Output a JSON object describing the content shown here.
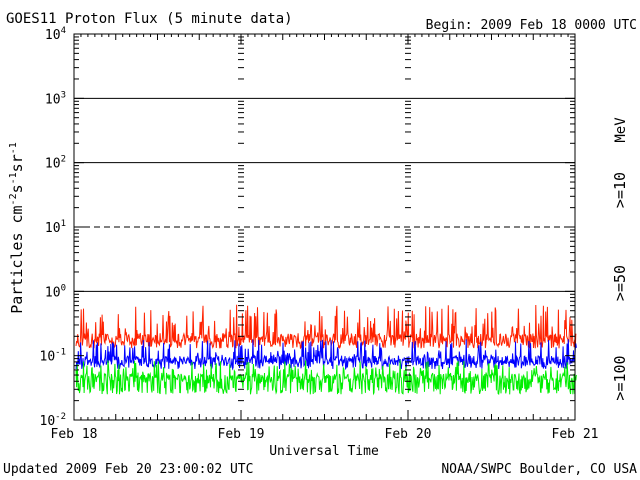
{
  "chart_data": {
    "type": "line",
    "title": "GOES11 Proton Flux (5 minute data)",
    "begin": "Begin: 2009 Feb 18 0000 UTC",
    "ylabel": {
      "base": "Particles cm",
      "sup1": "-2",
      "mid1": "s",
      "sup2": "-1",
      "mid2": "sr",
      "sup3": "-1"
    },
    "xlabel": "Universal Time",
    "updated": "Updated 2009 Feb 20 23:00:02 UTC",
    "credit": "NOAA/SWPC Boulder, CO USA",
    "unit_label": "MeV",
    "yscale": "log",
    "ylim": [
      0.01,
      10000
    ],
    "yticks": [
      {
        "base": "10",
        "exp": "4"
      },
      {
        "base": "10",
        "exp": "3"
      },
      {
        "base": "10",
        "exp": "2"
      },
      {
        "base": "10",
        "exp": "1"
      },
      {
        "base": "10",
        "exp": "0"
      },
      {
        "base": "10",
        "exp": "-1"
      },
      {
        "base": "10",
        "exp": "-2"
      }
    ],
    "xticks": [
      "Feb 18",
      "Feb 19",
      "Feb 20",
      "Feb 21"
    ],
    "xlim_days": [
      0,
      3
    ],
    "grid": "horizontal at each decade; 10^1 level dashed; dotted day separators",
    "series": [
      {
        "name": ">=10",
        "color": "#ff2200",
        "baseline": 0.19,
        "noise_low": 0.13,
        "noise_high": 0.62
      },
      {
        "name": ">=50",
        "color": "#0000ff",
        "baseline": 0.085,
        "noise_low": 0.062,
        "noise_high": 0.18
      },
      {
        "name": ">=100",
        "color": "#00ee00",
        "baseline": 0.045,
        "noise_low": 0.025,
        "noise_high": 0.085
      }
    ]
  }
}
